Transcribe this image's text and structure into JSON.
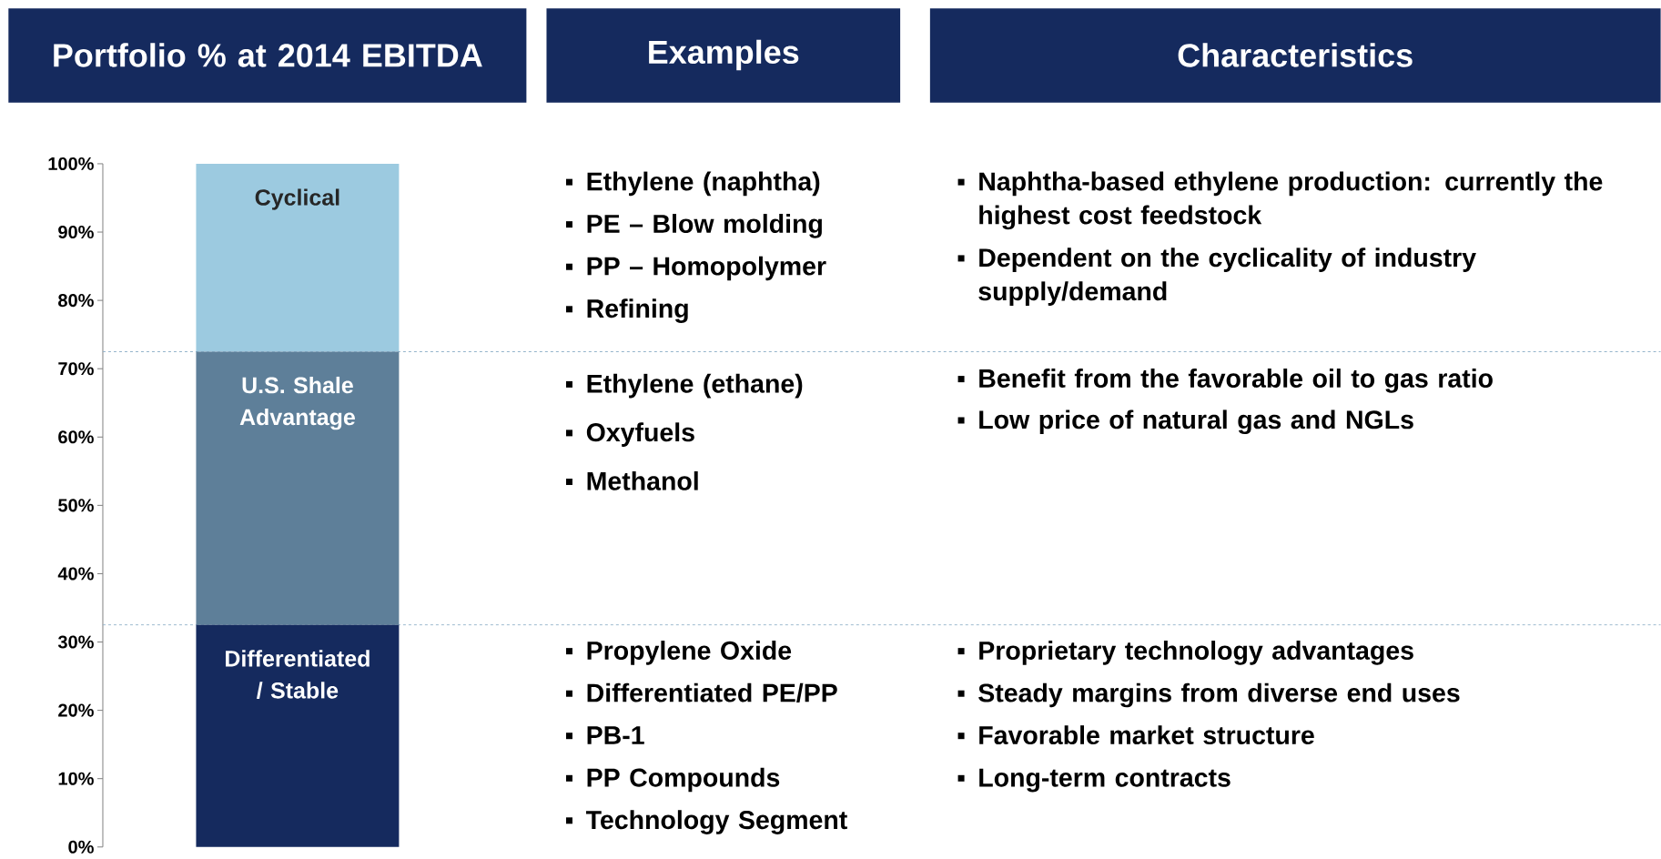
{
  "chart_data": {
    "type": "bar",
    "stacked": true,
    "title": "Portfolio % at 2014 EBITDA",
    "categories": [
      null
    ],
    "series": [
      {
        "name": "Differentiated / Stable",
        "color": "#152a5e",
        "values": [
          32.5
        ]
      },
      {
        "name": "U.S. Shale Advantage",
        "color": "#5e7f99",
        "values": [
          40
        ]
      },
      {
        "name": "Cyclical",
        "color": "#9ccae0",
        "values": [
          27.5
        ]
      }
    ],
    "ylim": [
      0,
      100
    ],
    "yticks": [
      {
        "value": 0,
        "label": "0%"
      },
      {
        "value": 10,
        "label": "10%"
      },
      {
        "value": 20,
        "label": "20%"
      },
      {
        "value": 30,
        "label": "30%"
      },
      {
        "value": 40,
        "label": "40%"
      },
      {
        "value": 50,
        "label": "50%"
      },
      {
        "value": 60,
        "label": "60%"
      },
      {
        "value": 70,
        "label": "70%"
      },
      {
        "value": 80,
        "label": "80%"
      },
      {
        "value": 90,
        "label": "90%"
      },
      {
        "value": 100,
        "label": "100%"
      }
    ],
    "ref_lines": [
      {
        "axis": "y",
        "value": 32.5,
        "color": "#8fb0c8",
        "line_style": "dashed"
      },
      {
        "axis": "y",
        "value": 72.5,
        "color": "#8fb0c8",
        "line_style": "dashed"
      }
    ],
    "annotations": [
      "Examples",
      "Characteristics",
      "Ethylene (naphtha)",
      "PE – Blow molding",
      "PP – Homopolymer",
      "Refining",
      "Ethylene (ethane)",
      "Oxyfuels",
      "Methanol",
      "Propylene Oxide",
      "Differentiated PE/PP",
      "PB-1",
      "PP Compounds",
      "Technology Segment",
      "Naphtha-based ethylene production: currently the highest cost feedstock",
      "Dependent on the cyclicality of industry supply/demand",
      "Benefit from the favorable oil to gas ratio",
      "Low price of natural gas and NGLs",
      "Proprietary technology advantages",
      "Steady margins from diverse end uses",
      "Favorable market structure",
      "Long-term contracts"
    ]
  }
}
